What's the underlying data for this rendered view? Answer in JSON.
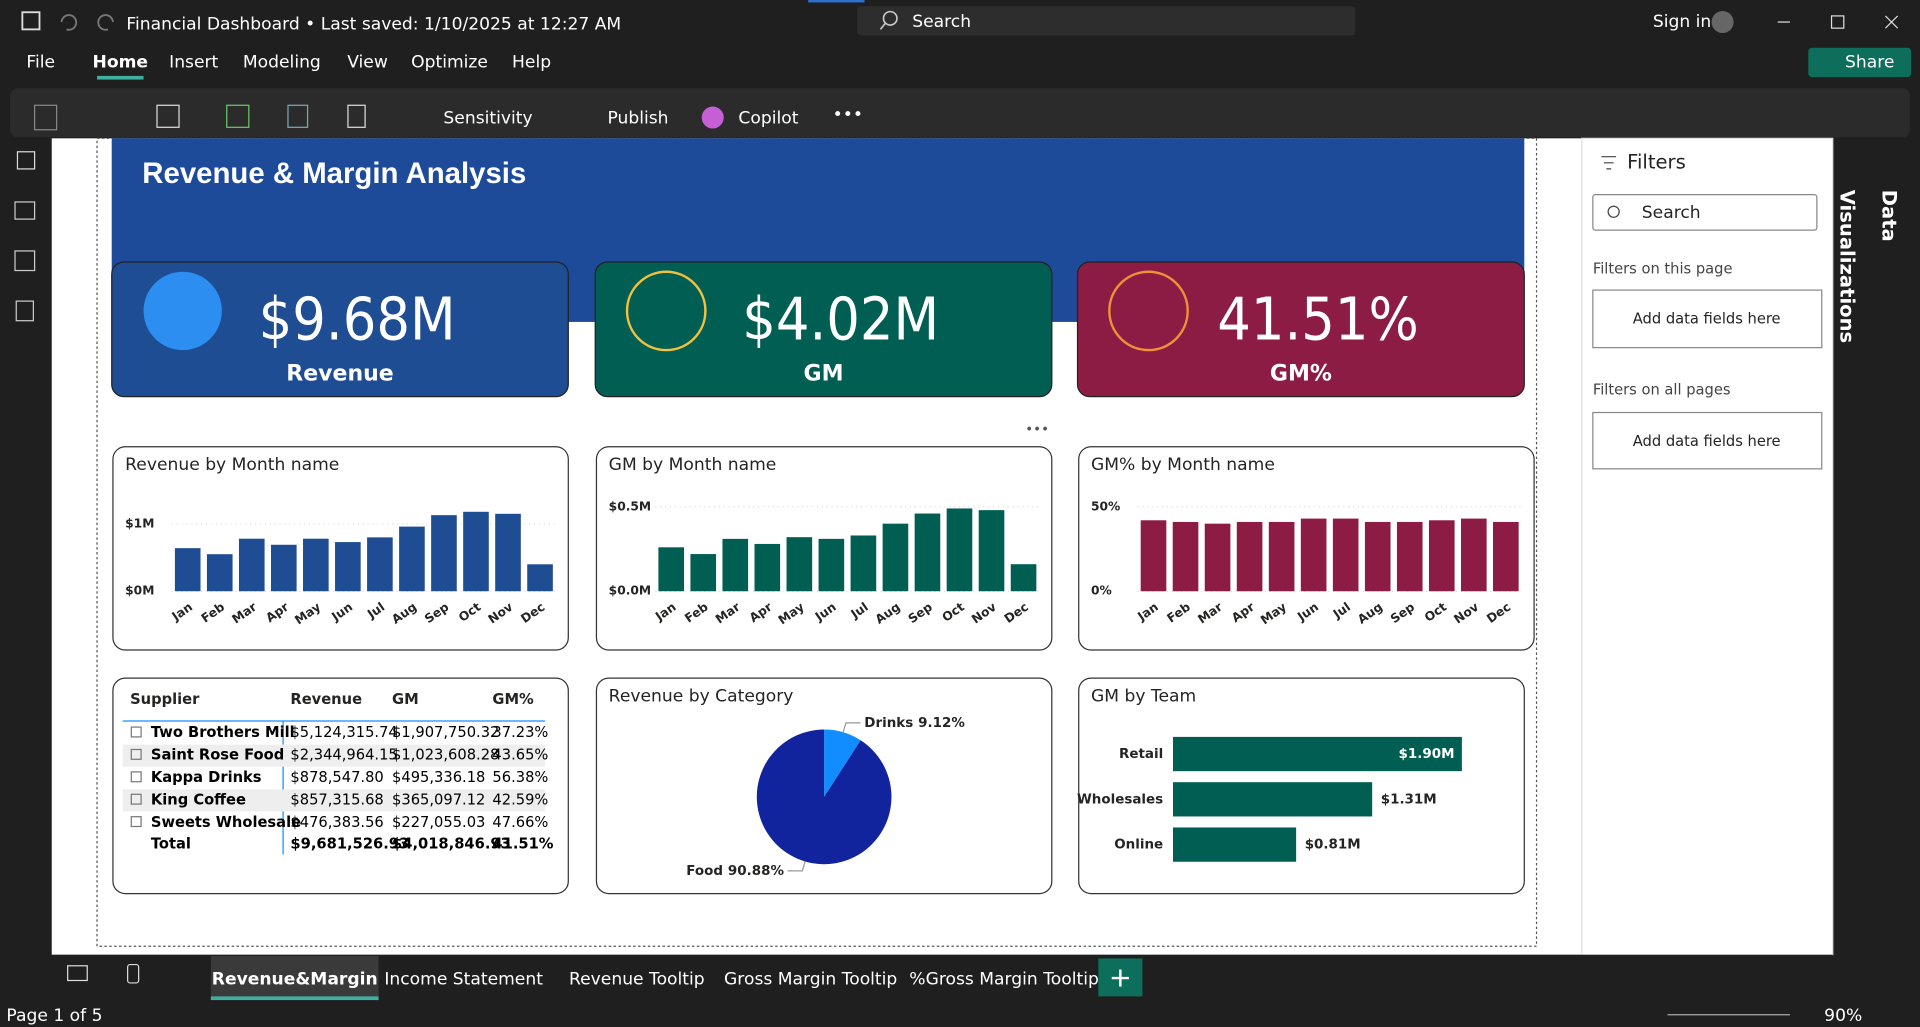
{
  "titlebar": {
    "document": "Financial Dashboard • Last saved: 1/10/2025 at 12:27 AM",
    "search": "Search",
    "sign_in": "Sign in"
  },
  "menu": [
    "File",
    "Home",
    "Insert",
    "Modeling",
    "View",
    "Optimize",
    "Help"
  ],
  "share": "Share",
  "ribbon": {
    "sensitivity": "Sensitivity",
    "publish": "Publish",
    "copilot": "Copilot"
  },
  "report_title": "Revenue & Margin Analysis",
  "kpis": [
    {
      "value": "$9.68M",
      "label": "Revenue",
      "color": "#1e4d94"
    },
    {
      "value": "$4.02M",
      "label": "GM",
      "color": "#005e53"
    },
    {
      "value": "41.51%",
      "label": "GM%",
      "color": "#8c1c44"
    }
  ],
  "charts": [
    {
      "type": "bar",
      "title": "Revenue by Month name",
      "color": "#1e4d94",
      "categories": [
        "Jan",
        "Feb",
        "Mar",
        "Apr",
        "May",
        "Jun",
        "Jul",
        "Aug",
        "Sep",
        "Oct",
        "Nov",
        "Dec"
      ],
      "values": [
        640000,
        550000,
        780000,
        690000,
        780000,
        730000,
        800000,
        960000,
        1130000,
        1180000,
        1150000,
        400000
      ],
      "ylim": [
        0,
        1200000
      ],
      "yticks": [
        {
          "value": 0,
          "label": "$0M"
        },
        {
          "value": 1000000,
          "label": "$1M"
        }
      ],
      "grid": true
    },
    {
      "type": "bar",
      "title": "GM by Month name",
      "color": "#005e53",
      "categories": [
        "Jan",
        "Feb",
        "Mar",
        "Apr",
        "May",
        "Jun",
        "Jul",
        "Aug",
        "Sep",
        "Oct",
        "Nov",
        "Dec"
      ],
      "values": [
        260000,
        220000,
        310000,
        280000,
        320000,
        310000,
        330000,
        400000,
        460000,
        490000,
        480000,
        160000
      ],
      "ylim": [
        0,
        550000
      ],
      "yticks": [
        {
          "value": 0,
          "label": "$0.0M"
        },
        {
          "value": 500000,
          "label": "$0.5M"
        }
      ],
      "grid": true
    },
    {
      "type": "bar",
      "title": "GM% by Month name",
      "color": "#8c1c44",
      "categories": [
        "Jan",
        "Feb",
        "Mar",
        "Apr",
        "May",
        "Jun",
        "Jul",
        "Aug",
        "Sep",
        "Oct",
        "Nov",
        "Dec"
      ],
      "values": [
        42,
        41,
        40,
        41,
        41,
        43,
        43,
        41,
        41,
        42,
        43,
        41
      ],
      "ylim": [
        0,
        50
      ],
      "yticks": [
        {
          "value": 0,
          "label": "0%"
        },
        {
          "value": 50,
          "label": "50%"
        }
      ],
      "grid": true
    },
    {
      "type": "pie",
      "title": "Revenue by Category",
      "categories": [
        "Drinks",
        "Food"
      ],
      "values": [
        9.12,
        90.88
      ],
      "value_labels": [
        "9.12%",
        "90.88%"
      ],
      "colors": [
        "#118dff",
        "#12239e"
      ]
    },
    {
      "type": "hbar",
      "title": "GM by Team",
      "color": "#005e53",
      "categories": [
        "Retail",
        "Wholesales",
        "Online"
      ],
      "values": [
        1900000,
        1310000,
        810000
      ],
      "value_labels": [
        "$1.90M",
        "$1.31M",
        "$0.81M"
      ]
    }
  ],
  "table": {
    "columns": [
      "Supplier",
      "Revenue",
      "GM",
      "GM%"
    ],
    "rows": [
      [
        "Two Brothers Mill",
        "$5,124,315.74",
        "$1,907,750.32",
        "37.23%"
      ],
      [
        "Saint Rose Food",
        "$2,344,964.15",
        "$1,023,608.28",
        "43.65%"
      ],
      [
        "Kappa Drinks",
        "$878,547.80",
        "$495,336.18",
        "56.38%"
      ],
      [
        "King Coffee",
        "$857,315.68",
        "$365,097.12",
        "42.59%"
      ],
      [
        "Sweets Wholesale",
        "$476,383.56",
        "$227,055.03",
        "47.66%"
      ]
    ],
    "total": [
      "Total",
      "$9,681,526.93",
      "$4,018,846.93",
      "41.51%"
    ]
  },
  "filters": {
    "title": "Filters",
    "search": "Search",
    "page_section": "Filters on this page",
    "page_drop": "Add data fields here",
    "all_section": "Filters on all pages",
    "all_drop": "Add data fields here"
  },
  "panes": [
    "Visualizations",
    "Data"
  ],
  "tabs": [
    "Revenue&Margin",
    "Income Statement",
    "Revenue Tooltip",
    "Gross Margin Tooltip",
    "%Gross Margin Tooltip"
  ],
  "status": {
    "page": "Page 1 of 5",
    "zoom": "90%"
  }
}
